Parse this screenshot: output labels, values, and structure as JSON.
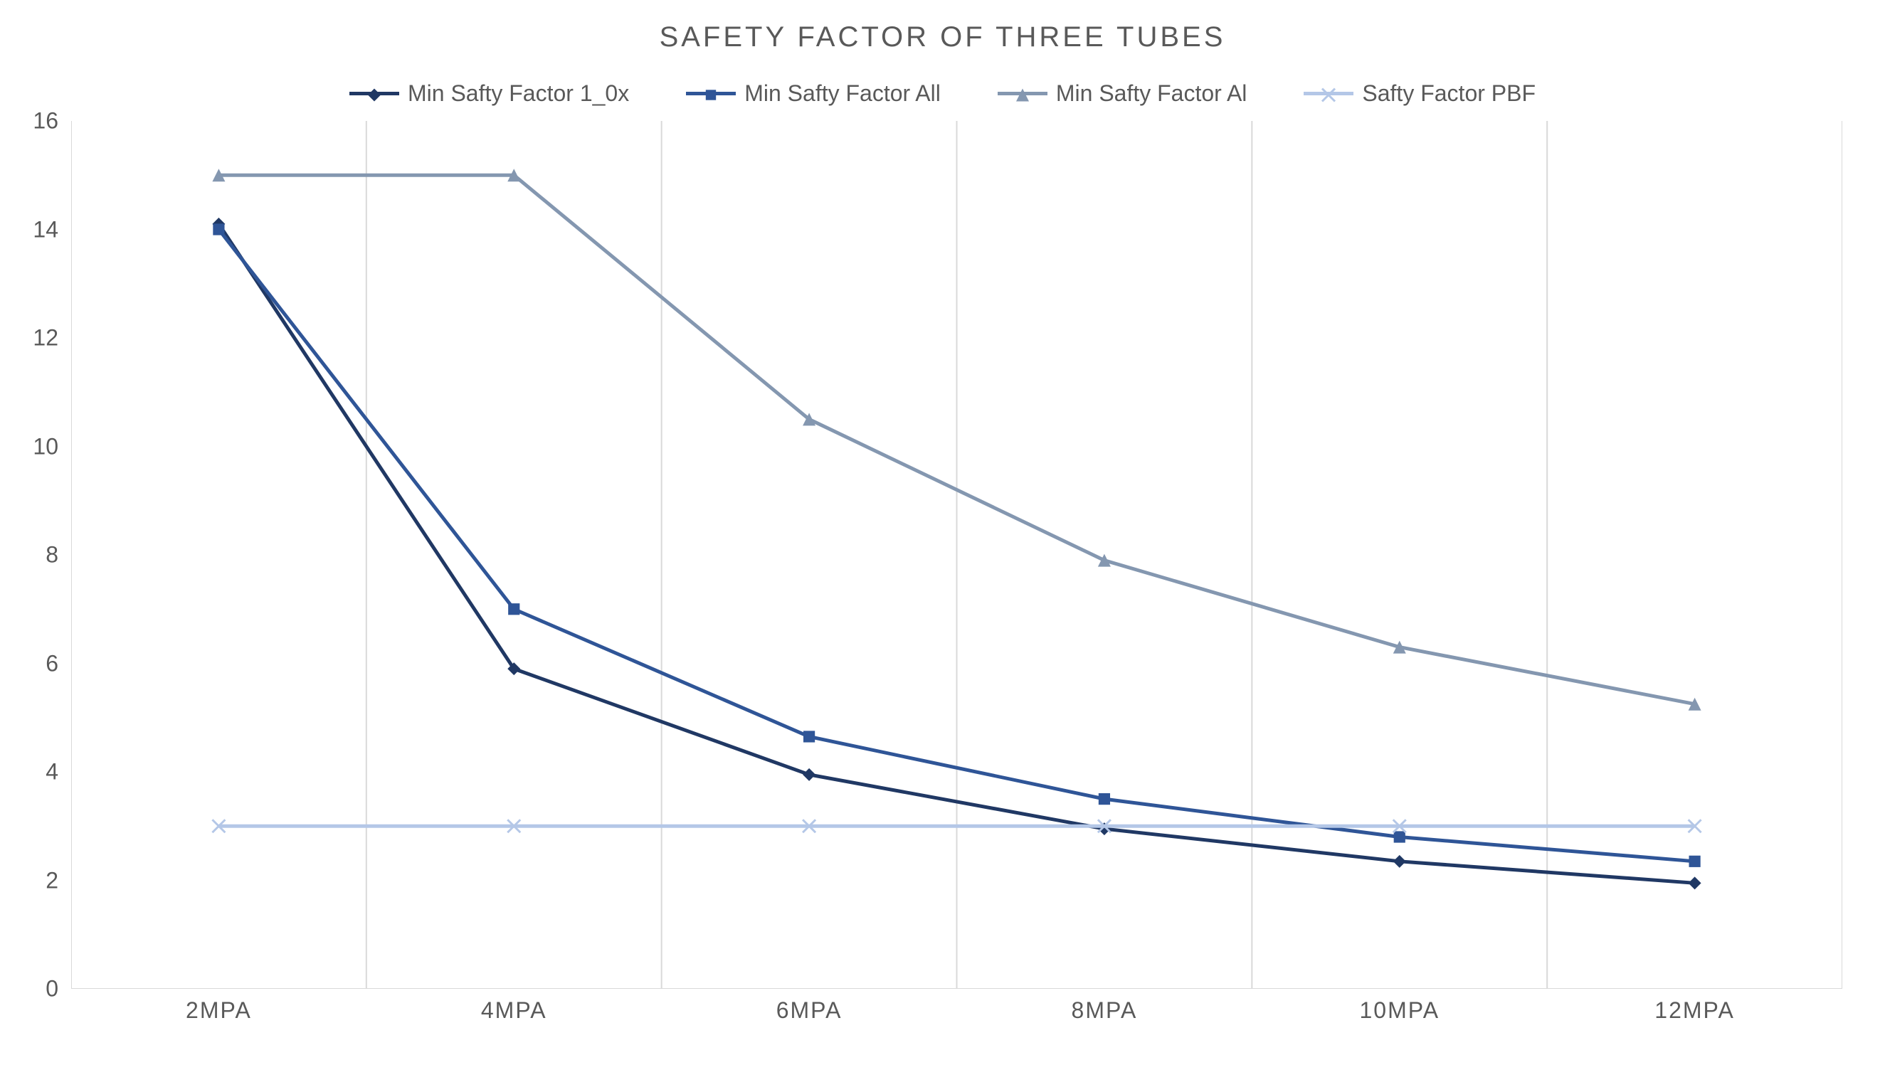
{
  "title": "SAFETY FACTOR OF THREE TUBES",
  "title_fontsize": 40,
  "title_letter_spacing": 4,
  "title_color": "#595959",
  "axis_label_fontsize": 32,
  "axis_label_color": "#595959",
  "legend_fontsize": 32,
  "background_color": "#ffffff",
  "plot_border_color": "#d9d9d9",
  "grid_color": "#d9d9d9",
  "grid_line_width": 2,
  "xlim": [
    0,
    5
  ],
  "ylim": [
    0,
    16
  ],
  "ytick_step": 2,
  "yticks": [
    0,
    2,
    4,
    6,
    8,
    10,
    12,
    14,
    16
  ],
  "x_categories": [
    "2MPA",
    "4MPA",
    "6MPA",
    "8MPA",
    "10MPA",
    "12MPA"
  ],
  "x_category_spacing": "between_gridlines",
  "line_width": 5,
  "marker_size": 9,
  "series": [
    {
      "name": "Min Safty Factor 1_0x",
      "color": "#203864",
      "marker": "diamond",
      "values": [
        14.1,
        5.9,
        3.95,
        2.95,
        2.35,
        1.95
      ]
    },
    {
      "name": "Min Safty Factor All",
      "color": "#2f5597",
      "marker": "square",
      "values": [
        14.0,
        7.0,
        4.65,
        3.5,
        2.8,
        2.35
      ]
    },
    {
      "name": "Min Safty Factor Al",
      "color": "#8497b0",
      "marker": "triangle",
      "values": [
        15.0,
        15.0,
        10.5,
        7.9,
        6.3,
        5.25
      ]
    },
    {
      "name": "Safty Factor PBF",
      "color": "#b4c7e7",
      "marker": "x",
      "values": [
        3.0,
        3.0,
        3.0,
        3.0,
        3.0,
        3.0
      ]
    }
  ]
}
